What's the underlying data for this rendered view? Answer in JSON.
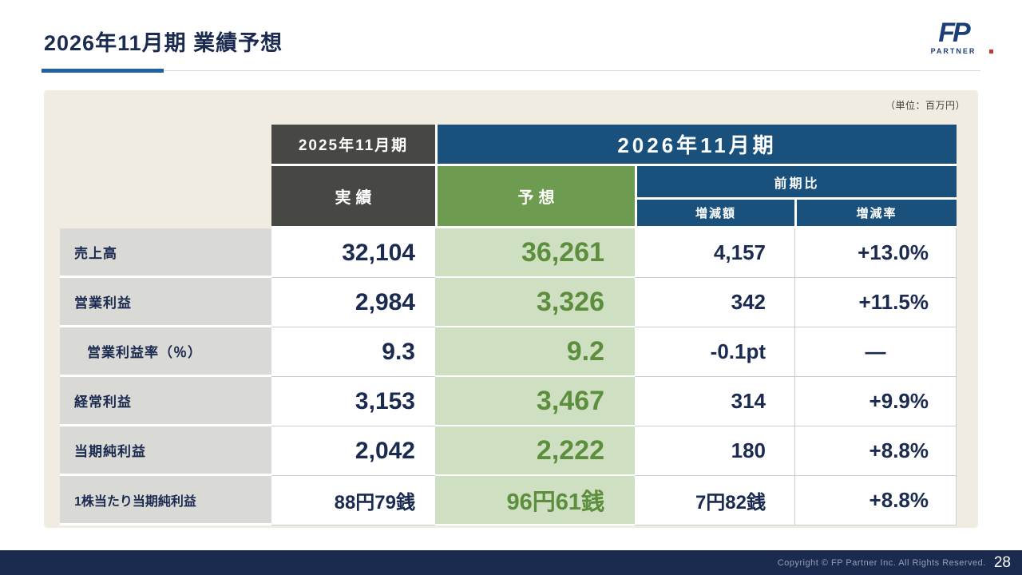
{
  "slide": {
    "title": "2026年11月期 業績予想",
    "unit_note": "（単位：百万円）",
    "page_number": "28",
    "copyright": "Copyright © FP Partner Inc. All Rights Reserved."
  },
  "logo": {
    "main": "FP",
    "sub": "PARTNER"
  },
  "colors": {
    "title_navy": "#1b2a50",
    "accent_blue": "#2062a0",
    "header_gray": "#474744",
    "header_navy": "#19507c",
    "header_green": "#6d9b50",
    "forecast_cell_green": "#cfe0c2",
    "forecast_text_green": "#5d8e3e",
    "panel_beige": "#f0ece2",
    "footer_navy": "#1b2b50"
  },
  "table": {
    "col_headers": {
      "prev_period": "2025年11月期",
      "current_period": "2026年11月期",
      "actual": "実績",
      "forecast": "予想",
      "yoy": "前期比",
      "change_amount": "増減額",
      "change_rate": "増減率"
    },
    "rows": [
      {
        "label": "売上高",
        "actual": "32,104",
        "forecast": "36,261",
        "change": "4,157",
        "rate": "+13.0%"
      },
      {
        "label": "営業利益",
        "actual": "2,984",
        "forecast": "3,326",
        "change": "342",
        "rate": "+11.5%"
      },
      {
        "label": "営業利益率（％）",
        "actual": "9.3",
        "forecast": "9.2",
        "change": "-0.1pt",
        "rate": "—"
      },
      {
        "label": "経常利益",
        "actual": "3,153",
        "forecast": "3,467",
        "change": "314",
        "rate": "+9.9%"
      },
      {
        "label": "当期純利益",
        "actual": "2,042",
        "forecast": "2,222",
        "change": "180",
        "rate": "+8.8%"
      },
      {
        "label": "1株当たり当期純利益",
        "actual": "88円79銭",
        "forecast": "96円61銭",
        "change": "7円82銭",
        "rate": "+8.8%"
      }
    ]
  }
}
